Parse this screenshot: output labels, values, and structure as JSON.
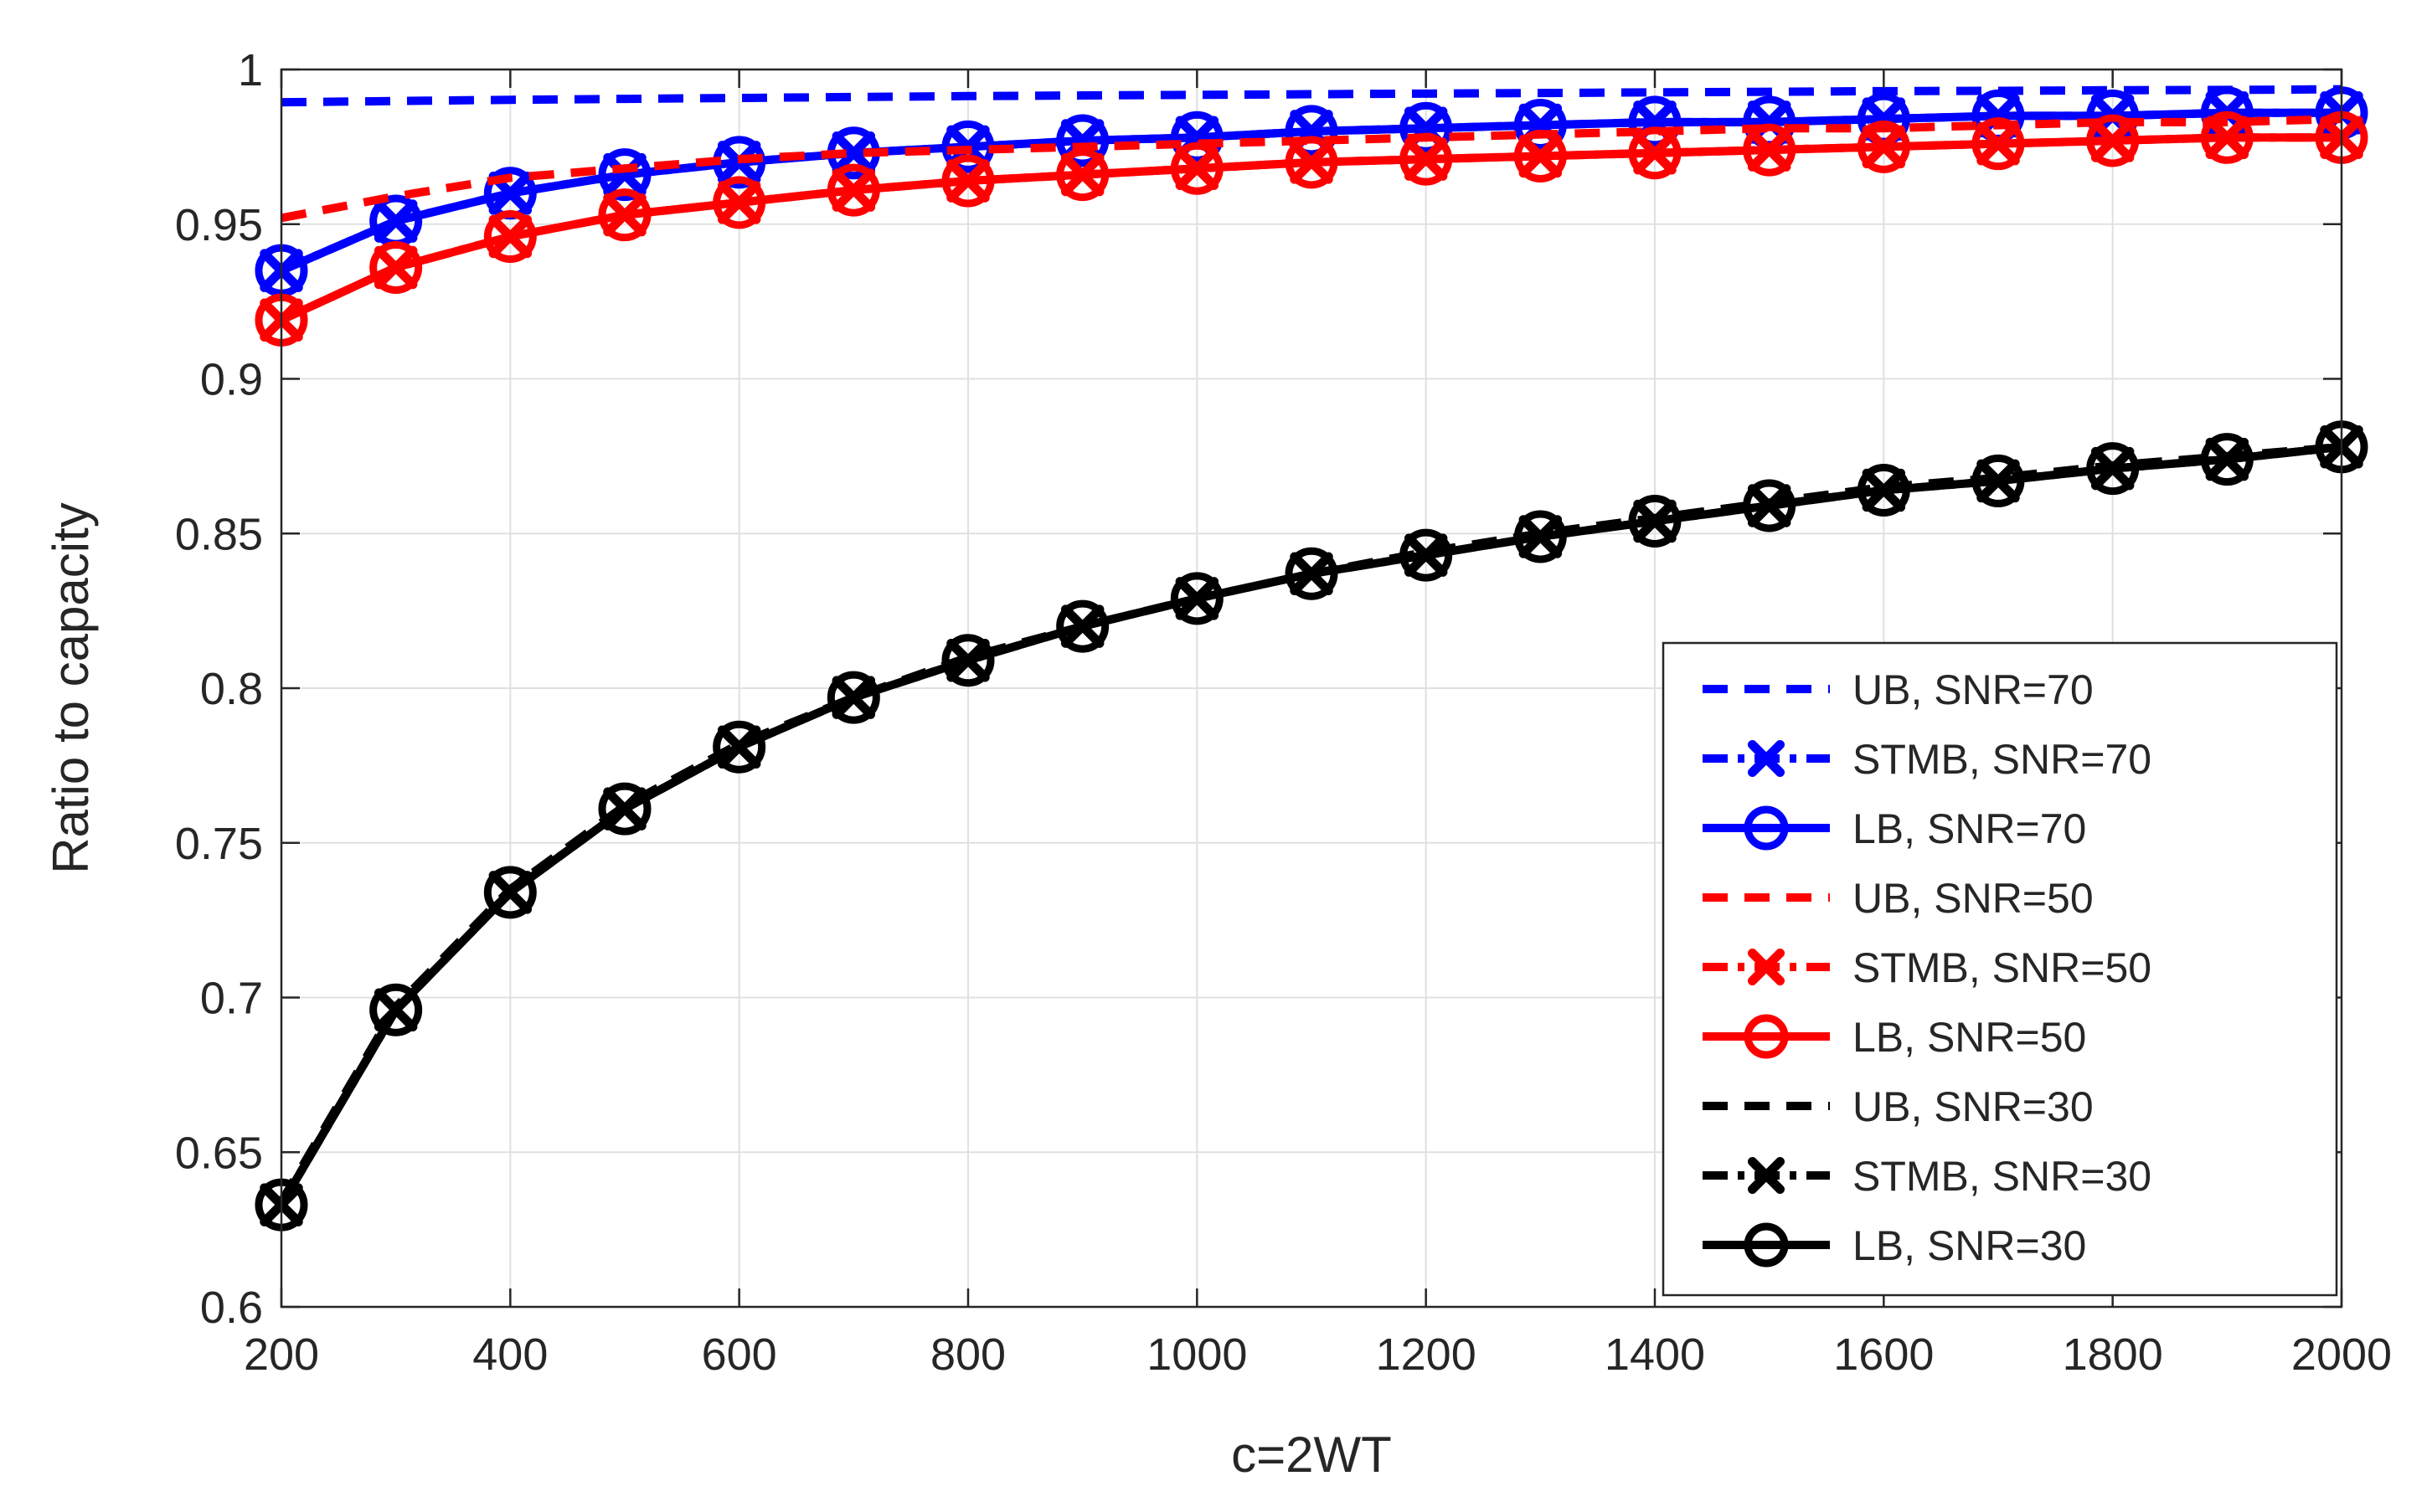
{
  "chart_data": {
    "type": "line",
    "title": "",
    "xlabel": "c=2WT",
    "ylabel": "Ratio to capacity",
    "xlim": [
      200,
      2000
    ],
    "ylim": [
      0.6,
      1.0
    ],
    "grid": true,
    "legend_position": "bottom-right",
    "x_ticks": [
      "200",
      "400",
      "600",
      "800",
      "1000",
      "1200",
      "1400",
      "1600",
      "1800",
      "2000"
    ],
    "y_ticks": [
      "0.6",
      "0.65",
      "0.7",
      "0.75",
      "0.8",
      "0.85",
      "0.9",
      "0.95",
      "1"
    ],
    "x": [
      200,
      300,
      400,
      500,
      600,
      700,
      800,
      900,
      1000,
      1100,
      1200,
      1300,
      1400,
      1500,
      1600,
      1700,
      1800,
      1900,
      2000
    ],
    "series": [
      {
        "name": "UB, SNR=70",
        "color": "#0000ff",
        "style": "dashed",
        "marker": "none",
        "values": [
          0.9894,
          0.9898,
          0.9902,
          0.9905,
          0.9908,
          0.9911,
          0.9914,
          0.9916,
          0.9918,
          0.992,
          0.9922,
          0.9924,
          0.9926,
          0.9928,
          0.993,
          0.9931,
          0.9933,
          0.9934,
          0.9936
        ]
      },
      {
        "name": "STMB, SNR=70",
        "color": "#0000ff",
        "style": "dashdot",
        "marker": "x",
        "values": [
          0.935,
          0.951,
          0.96,
          0.966,
          0.97,
          0.973,
          0.975,
          0.977,
          0.978,
          0.98,
          0.981,
          0.982,
          0.983,
          0.983,
          0.984,
          0.985,
          0.985,
          0.986,
          0.986
        ]
      },
      {
        "name": "LB, SNR=70",
        "color": "#0000ff",
        "style": "solid",
        "marker": "circle",
        "values": [
          0.935,
          0.951,
          0.96,
          0.966,
          0.97,
          0.973,
          0.975,
          0.977,
          0.978,
          0.98,
          0.981,
          0.982,
          0.983,
          0.983,
          0.984,
          0.985,
          0.985,
          0.986,
          0.986
        ]
      },
      {
        "name": "UB, SNR=50",
        "color": "#ff0000",
        "style": "dashed",
        "marker": "none",
        "values": [
          0.952,
          0.959,
          0.965,
          0.968,
          0.971,
          0.973,
          0.974,
          0.975,
          0.976,
          0.977,
          0.978,
          0.979,
          0.98,
          0.981,
          0.981,
          0.982,
          0.983,
          0.983,
          0.984
        ]
      },
      {
        "name": "STMB, SNR=50",
        "color": "#ff0000",
        "style": "dashdot",
        "marker": "x",
        "values": [
          0.919,
          0.936,
          0.946,
          0.953,
          0.957,
          0.961,
          0.964,
          0.966,
          0.968,
          0.97,
          0.971,
          0.972,
          0.973,
          0.974,
          0.975,
          0.976,
          0.977,
          0.978,
          0.978
        ]
      },
      {
        "name": "LB, SNR=50",
        "color": "#ff0000",
        "style": "solid",
        "marker": "circle",
        "values": [
          0.919,
          0.936,
          0.946,
          0.953,
          0.957,
          0.961,
          0.964,
          0.966,
          0.968,
          0.97,
          0.971,
          0.972,
          0.973,
          0.974,
          0.975,
          0.976,
          0.977,
          0.978,
          0.978
        ]
      },
      {
        "name": "UB, SNR=30",
        "color": "#000000",
        "style": "dashed",
        "marker": "none",
        "values": [
          0.634,
          0.697,
          0.735,
          0.762,
          0.782,
          0.797,
          0.81,
          0.82,
          0.829,
          0.837,
          0.844,
          0.85,
          0.855,
          0.86,
          0.865,
          0.868,
          0.872,
          0.875,
          0.878
        ]
      },
      {
        "name": "STMB, SNR=30",
        "color": "#000000",
        "style": "dashdot",
        "marker": "x",
        "values": [
          0.633,
          0.696,
          0.734,
          0.761,
          0.781,
          0.797,
          0.809,
          0.82,
          0.829,
          0.837,
          0.843,
          0.849,
          0.854,
          0.859,
          0.864,
          0.867,
          0.871,
          0.874,
          0.878
        ]
      },
      {
        "name": "LB, SNR=30",
        "color": "#000000",
        "style": "solid",
        "marker": "circle",
        "values": [
          0.633,
          0.696,
          0.734,
          0.761,
          0.781,
          0.797,
          0.809,
          0.82,
          0.829,
          0.837,
          0.843,
          0.849,
          0.854,
          0.859,
          0.864,
          0.867,
          0.871,
          0.874,
          0.878
        ]
      }
    ]
  }
}
